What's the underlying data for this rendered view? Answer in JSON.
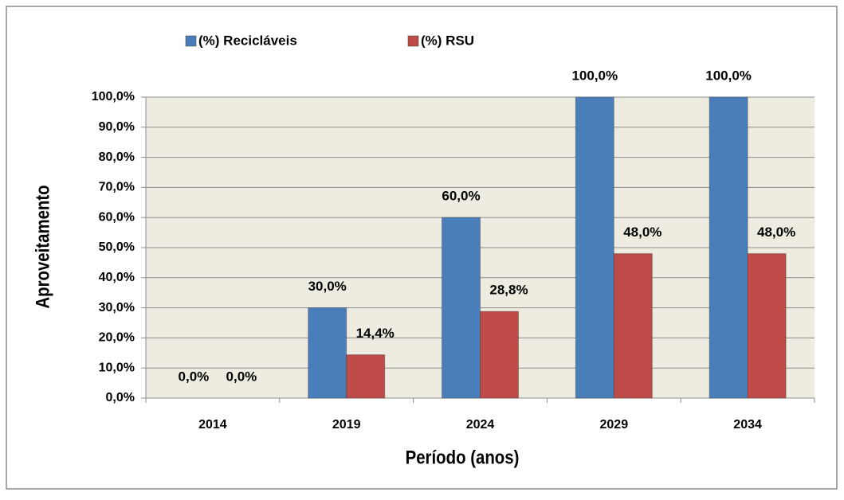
{
  "chart_data": {
    "type": "bar",
    "x_label": "Período (anos)",
    "y_label": "Aproveitamento",
    "categories": [
      "2014",
      "2019",
      "2024",
      "2029",
      "2034"
    ],
    "series": [
      {
        "name": "(%) Recicláveis",
        "color": "#4a7ebb",
        "values": [
          0,
          30,
          60,
          100,
          100
        ],
        "value_labels": [
          "0,0%",
          "30,0%",
          "60,0%",
          "100,0%",
          "100,0%"
        ]
      },
      {
        "name": "(%) RSU",
        "color": "#be4b48",
        "values": [
          0,
          14.4,
          28.8,
          48,
          48
        ],
        "value_labels": [
          "0,0%",
          "14,4%",
          "28,8%",
          "48,0%",
          "48,0%"
        ]
      }
    ],
    "ylim": [
      0,
      100
    ],
    "yticks": [
      {
        "value": 0,
        "label": "0,0%"
      },
      {
        "value": 10,
        "label": "10,0%"
      },
      {
        "value": 20,
        "label": "20,0%"
      },
      {
        "value": 30,
        "label": "30,0%"
      },
      {
        "value": 40,
        "label": "40,0%"
      },
      {
        "value": 50,
        "label": "50,0%"
      },
      {
        "value": 60,
        "label": "60,0%"
      },
      {
        "value": 70,
        "label": "70,0%"
      },
      {
        "value": 80,
        "label": "80,0%"
      },
      {
        "value": 90,
        "label": "90,0%"
      },
      {
        "value": 100,
        "label": "100,0%"
      }
    ],
    "grid": true,
    "legend": "top"
  }
}
